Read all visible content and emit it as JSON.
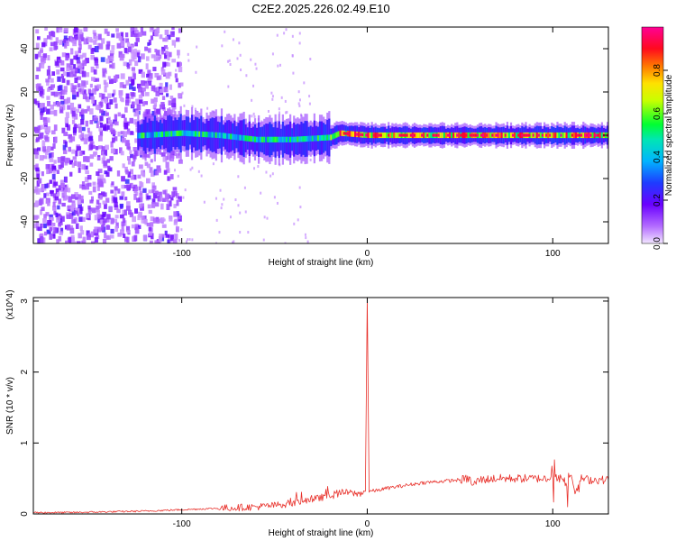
{
  "title": "C2E2.2025.226.02.49.E10",
  "chart_data": [
    {
      "type": "heatmap",
      "xlabel": "Height of straight line (km)",
      "ylabel": "Frequency (Hz)",
      "xlim": [
        -180,
        130
      ],
      "ylim": [
        -50,
        50
      ],
      "xticks": [
        -100,
        0,
        100
      ],
      "yticks": [
        -40,
        -20,
        0,
        20,
        40
      ],
      "xtick_labels": [
        "-100",
        "0",
        "100"
      ],
      "ytick_labels": [
        "-40",
        "-20",
        "0",
        "20",
        "40"
      ],
      "colorbar": {
        "label": "Normalized spectral amplitude",
        "range": [
          0,
          1
        ],
        "ticks": [
          0.0,
          0.2,
          0.4,
          0.6,
          0.8
        ],
        "tick_labels": [
          "0.0",
          "0.2",
          "0.4",
          "0.6",
          "0.8"
        ],
        "colormap": "rainbow (violet → blue → cyan → green → yellow → red → magenta)"
      },
      "description_points": {
        "noise_region_x": [
          -180,
          -105
        ],
        "signal_start_x": -125,
        "signal_band_center_hz": [
          [
            -120,
            0
          ],
          [
            -100,
            1
          ],
          [
            -80,
            0
          ],
          [
            -60,
            -2
          ],
          [
            -40,
            -2
          ],
          [
            -20,
            -1
          ],
          [
            -15,
            1
          ],
          [
            0,
            0
          ],
          [
            50,
            0
          ],
          [
            100,
            0
          ],
          [
            130,
            0
          ]
        ]
      }
    },
    {
      "type": "line",
      "xlabel": "Height of straight line (km)",
      "ylabel": "SNR (10 * v/v)",
      "y_multiplier": "(x10^4)",
      "xlim": [
        -180,
        130
      ],
      "ylim": [
        0,
        3.05
      ],
      "xticks": [
        -100,
        0,
        100
      ],
      "yticks": [
        0,
        1,
        2,
        3
      ],
      "xtick_labels": [
        "-100",
        "0",
        "100"
      ],
      "ytick_labels": [
        "0",
        "1",
        "2",
        "3"
      ],
      "color": "#e8302a",
      "series": [
        {
          "x": [
            -180,
            -160,
            -140,
            -120,
            -100,
            -80,
            -60,
            -50,
            -40,
            -30,
            -20,
            -15,
            -10,
            -5,
            -1,
            0,
            1,
            5,
            10,
            20,
            30,
            40,
            50,
            55,
            57,
            60,
            70,
            80,
            90,
            100,
            105,
            108,
            110,
            112,
            115,
            120,
            130
          ],
          "y": [
            0.02,
            0.02,
            0.03,
            0.04,
            0.06,
            0.08,
            0.1,
            0.12,
            0.16,
            0.2,
            0.26,
            0.3,
            0.3,
            0.28,
            0.32,
            3.05,
            0.32,
            0.33,
            0.36,
            0.4,
            0.44,
            0.46,
            0.48,
            0.5,
            0.4,
            0.48,
            0.5,
            0.5,
            0.5,
            0.5,
            0.5,
            0.4,
            0.6,
            0.3,
            0.5,
            0.48,
            0.48
          ]
        }
      ]
    }
  ]
}
